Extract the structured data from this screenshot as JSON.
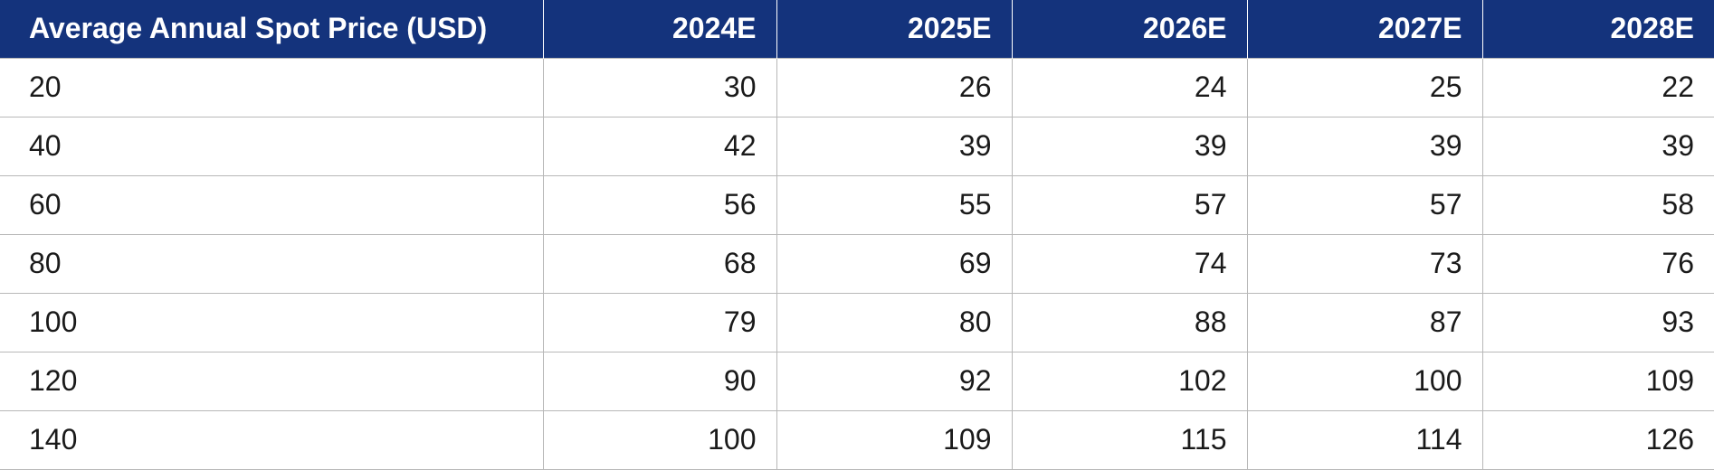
{
  "colors": {
    "header_background": "#14337c",
    "header_text": "#ffffff",
    "grid_line": "#b8b8b8",
    "body_text": "#1a1a1a"
  },
  "table": {
    "columns": [
      "Average Annual Spot Price (USD)",
      "2024E",
      "2025E",
      "2026E",
      "2027E",
      "2028E"
    ],
    "rows": [
      [
        "20",
        "30",
        "26",
        "24",
        "25",
        "22"
      ],
      [
        "40",
        "42",
        "39",
        "39",
        "39",
        "39"
      ],
      [
        "60",
        "56",
        "55",
        "57",
        "57",
        "58"
      ],
      [
        "80",
        "68",
        "69",
        "74",
        "73",
        "76"
      ],
      [
        "100",
        "79",
        "80",
        "88",
        "87",
        "93"
      ],
      [
        "120",
        "90",
        "92",
        "102",
        "100",
        "109"
      ],
      [
        "140",
        "100",
        "109",
        "115",
        "114",
        "126"
      ]
    ]
  }
}
